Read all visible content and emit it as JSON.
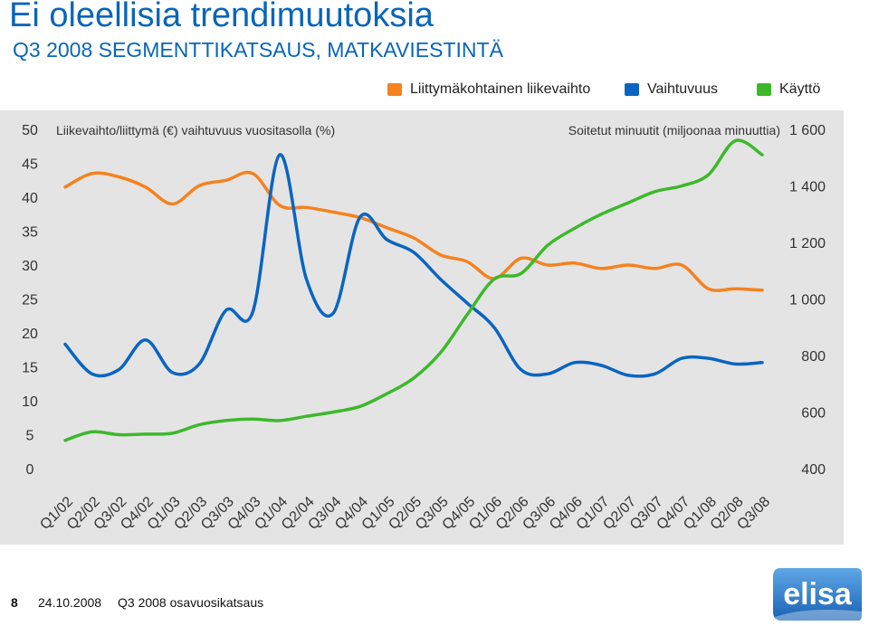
{
  "slide": {
    "title": "Ei oleellisia trendimuutoksia",
    "subtitle": "Q3 2008 SEGMENTTIKATSAUS, MATKAVIESTINTÄ"
  },
  "legend": [
    {
      "label": "Liittymäkohtainen liikevaihto",
      "color": "#f5821f"
    },
    {
      "label": "Vaihtuvuus",
      "color": "#0a65c0"
    },
    {
      "label": "Käyttö",
      "color": "#3db82c"
    }
  ],
  "chart_data": {
    "type": "line",
    "left_axis_label": "Liikevaihto/liittymä (€) vaihtuvuus vuositasolla (%)",
    "right_axis_label": "Soitetut minuutit (miljoonaa minuuttia)",
    "left_ylim": [
      0,
      50
    ],
    "left_ticks": [
      "0",
      "5",
      "10",
      "15",
      "20",
      "25",
      "30",
      "35",
      "40",
      "45",
      "50"
    ],
    "right_ylim": [
      400,
      1600
    ],
    "right_ticks": [
      "400",
      "600",
      "800",
      "1 000",
      "1 200",
      "1 400",
      "1 600"
    ],
    "categories": [
      "Q1/02",
      "Q2/02",
      "Q3/02",
      "Q4/02",
      "Q1/03",
      "Q2/03",
      "Q3/03",
      "Q4/03",
      "Q1/04",
      "Q2/04",
      "Q3/04",
      "Q4/04",
      "Q1/05",
      "Q2/05",
      "Q3/05",
      "Q4/05",
      "Q1/06",
      "Q2/06",
      "Q3/06",
      "Q4/06",
      "Q1/07",
      "Q2/07",
      "Q3/07",
      "Q4/07",
      "Q1/08",
      "Q2/08",
      "Q3/08"
    ],
    "grid": false,
    "legend_position": "top-right",
    "series": [
      {
        "name": "Liittymäkohtainen liikevaihto",
        "axis": "left",
        "color": "#f5821f",
        "values": [
          41.5,
          43.5,
          43,
          41.5,
          39,
          41.7,
          42.5,
          43.5,
          38.8,
          38.5,
          37.8,
          37,
          35.5,
          34,
          31.5,
          30.5,
          28,
          31,
          30,
          30.3,
          29.5,
          30,
          29.5,
          30,
          26.5,
          26.5,
          26.3
        ]
      },
      {
        "name": "Vaihtuvuus",
        "axis": "right",
        "color": "#0a65c0",
        "values": [
          840,
          735,
          750,
          855,
          740,
          770,
          960,
          955,
          1510,
          1070,
          950,
          1290,
          1210,
          1165,
          1070,
          985,
          900,
          750,
          735,
          775,
          765,
          730,
          735,
          790,
          790,
          770,
          775
        ]
      },
      {
        "name": "Käyttö",
        "axis": "right",
        "color": "#3db82c",
        "values": [
          500,
          530,
          520,
          522,
          525,
          555,
          570,
          575,
          570,
          585,
          600,
          620,
          665,
          720,
          810,
          945,
          1070,
          1090,
          1190,
          1250,
          1300,
          1340,
          1380,
          1400,
          1440,
          1560,
          1510
        ]
      }
    ]
  },
  "footer": {
    "page_number": "8",
    "date": "24.10.2008",
    "doc_title": "Q3 2008 osavuosikatsaus"
  },
  "logo": {
    "text": "elisa",
    "color": "#2a7ccd"
  }
}
